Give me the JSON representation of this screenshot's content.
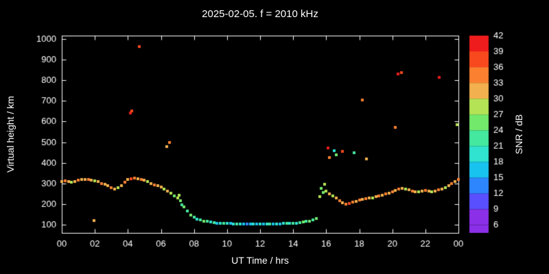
{
  "title": "2025-02-05. f = 2010 kHz",
  "chart_data": {
    "type": "scatter",
    "title": "2025-02-05. f = 2010 kHz",
    "xlabel": "UT Time / hrs",
    "ylabel": "Virtual height / km",
    "colorbar_label": "SNR / dB",
    "background": "#000000",
    "axis_color": "#ffffff",
    "xlim": [
      0,
      24
    ],
    "ylim": [
      100,
      1000
    ],
    "x_tick_values": [
      0,
      2,
      4,
      6,
      8,
      10,
      12,
      14,
      16,
      18,
      20,
      22,
      24
    ],
    "x_tick_labels": [
      "00",
      "02",
      "04",
      "06",
      "08",
      "10",
      "12",
      "14",
      "16",
      "18",
      "20",
      "22",
      "00"
    ],
    "y_tick_values": [
      100,
      200,
      300,
      400,
      500,
      600,
      700,
      800,
      900,
      1000
    ],
    "snr_range": [
      6,
      42
    ],
    "snr_ticks": [
      6,
      9,
      12,
      15,
      18,
      21,
      24,
      27,
      30,
      33,
      36,
      39,
      42
    ],
    "colormap": [
      "#8b2fe8",
      "#5a4fff",
      "#2e86ff",
      "#19c3f0",
      "#2fe3d0",
      "#44e89e",
      "#73e96c",
      "#b4e455",
      "#f2b14e",
      "#fb8130",
      "#f8491e",
      "#ee1c1c"
    ],
    "point_size": 4,
    "legend_position": "right-colorbar",
    "grid": false,
    "points": [
      [
        0.0,
        310,
        31
      ],
      [
        0.2,
        312,
        34
      ],
      [
        0.4,
        308,
        31
      ],
      [
        0.6,
        305,
        28
      ],
      [
        0.8,
        308,
        31
      ],
      [
        1.0,
        315,
        34
      ],
      [
        1.2,
        318,
        31
      ],
      [
        1.4,
        320,
        31
      ],
      [
        1.6,
        318,
        34
      ],
      [
        1.8,
        315,
        31
      ],
      [
        2.0,
        312,
        28
      ],
      [
        2.2,
        308,
        31
      ],
      [
        2.4,
        300,
        34
      ],
      [
        2.6,
        295,
        31
      ],
      [
        2.8,
        288,
        31
      ],
      [
        3.0,
        280,
        34
      ],
      [
        3.2,
        272,
        31
      ],
      [
        3.4,
        278,
        28
      ],
      [
        3.6,
        290,
        31
      ],
      [
        3.8,
        305,
        34
      ],
      [
        4.0,
        318,
        31
      ],
      [
        4.2,
        322,
        37
      ],
      [
        4.4,
        325,
        34
      ],
      [
        4.6,
        322,
        31
      ],
      [
        4.8,
        318,
        34
      ],
      [
        5.0,
        315,
        31
      ],
      [
        5.2,
        308,
        28
      ],
      [
        5.4,
        300,
        31
      ],
      [
        5.6,
        292,
        34
      ],
      [
        5.8,
        288,
        31
      ],
      [
        6.0,
        282,
        31
      ],
      [
        6.2,
        272,
        28
      ],
      [
        6.4,
        262,
        31
      ],
      [
        6.6,
        252,
        28
      ],
      [
        6.8,
        240,
        25
      ],
      [
        7.0,
        228,
        28
      ],
      [
        7.2,
        215,
        25
      ],
      [
        7.4,
        185,
        25
      ],
      [
        7.6,
        165,
        22
      ],
      [
        7.8,
        148,
        25
      ],
      [
        8.0,
        135,
        22
      ],
      [
        8.2,
        128,
        19
      ],
      [
        8.4,
        122,
        22
      ],
      [
        8.6,
        118,
        25
      ],
      [
        8.8,
        115,
        22
      ],
      [
        9.0,
        112,
        19
      ],
      [
        9.2,
        110,
        22
      ],
      [
        9.4,
        108,
        16
      ],
      [
        9.6,
        107,
        19
      ],
      [
        9.8,
        106,
        22
      ],
      [
        10.0,
        105,
        19
      ],
      [
        10.2,
        105,
        16
      ],
      [
        10.4,
        104,
        19
      ],
      [
        10.6,
        104,
        22
      ],
      [
        10.8,
        103,
        19
      ],
      [
        11.0,
        103,
        16
      ],
      [
        11.2,
        103,
        13
      ],
      [
        11.4,
        102,
        16
      ],
      [
        11.6,
        102,
        19
      ],
      [
        11.8,
        102,
        16
      ],
      [
        12.0,
        102,
        19
      ],
      [
        12.2,
        102,
        16
      ],
      [
        12.4,
        103,
        19
      ],
      [
        12.6,
        103,
        22
      ],
      [
        12.8,
        103,
        16
      ],
      [
        13.0,
        104,
        19
      ],
      [
        13.2,
        104,
        16
      ],
      [
        13.4,
        105,
        19
      ],
      [
        13.6,
        105,
        22
      ],
      [
        13.8,
        106,
        19
      ],
      [
        14.0,
        107,
        22
      ],
      [
        14.2,
        108,
        19
      ],
      [
        14.4,
        110,
        22
      ],
      [
        14.6,
        112,
        25
      ],
      [
        14.8,
        115,
        22
      ],
      [
        15.0,
        118,
        25
      ],
      [
        15.2,
        122,
        22
      ],
      [
        15.4,
        130,
        25
      ],
      [
        15.6,
        235,
        28
      ],
      [
        15.8,
        255,
        25
      ],
      [
        16.0,
        262,
        28
      ],
      [
        16.2,
        250,
        31
      ],
      [
        16.4,
        238,
        28
      ],
      [
        16.6,
        228,
        31
      ],
      [
        16.8,
        215,
        34
      ],
      [
        17.0,
        205,
        31
      ],
      [
        17.2,
        200,
        34
      ],
      [
        17.4,
        202,
        37
      ],
      [
        17.6,
        208,
        34
      ],
      [
        17.8,
        212,
        31
      ],
      [
        18.0,
        218,
        34
      ],
      [
        18.2,
        222,
        31
      ],
      [
        18.4,
        225,
        34
      ],
      [
        18.6,
        228,
        31
      ],
      [
        18.8,
        230,
        28
      ],
      [
        19.0,
        235,
        31
      ],
      [
        19.2,
        238,
        34
      ],
      [
        19.4,
        242,
        31
      ],
      [
        19.6,
        248,
        34
      ],
      [
        19.8,
        252,
        31
      ],
      [
        20.0,
        258,
        34
      ],
      [
        20.2,
        265,
        31
      ],
      [
        20.4,
        272,
        34
      ],
      [
        20.6,
        275,
        31
      ],
      [
        20.8,
        272,
        28
      ],
      [
        21.0,
        268,
        31
      ],
      [
        21.2,
        262,
        34
      ],
      [
        21.4,
        258,
        31
      ],
      [
        21.6,
        260,
        28
      ],
      [
        21.8,
        262,
        31
      ],
      [
        22.0,
        265,
        34
      ],
      [
        22.2,
        262,
        31
      ],
      [
        22.4,
        258,
        28
      ],
      [
        22.6,
        262,
        31
      ],
      [
        22.8,
        268,
        34
      ],
      [
        23.0,
        272,
        31
      ],
      [
        23.2,
        280,
        28
      ],
      [
        23.4,
        288,
        31
      ],
      [
        23.6,
        298,
        34
      ],
      [
        23.8,
        308,
        31
      ],
      [
        24.0,
        318,
        34
      ],
      [
        1.95,
        120,
        31
      ],
      [
        4.15,
        640,
        40
      ],
      [
        4.22,
        652,
        37
      ],
      [
        4.7,
        963,
        37
      ],
      [
        6.35,
        478,
        31
      ],
      [
        6.5,
        498,
        34
      ],
      [
        7.1,
        243,
        28
      ],
      [
        7.25,
        196,
        22
      ],
      [
        15.7,
        275,
        25
      ],
      [
        15.9,
        295,
        28
      ],
      [
        16.1,
        473,
        40
      ],
      [
        16.2,
        424,
        34
      ],
      [
        16.5,
        458,
        19
      ],
      [
        16.62,
        440,
        25
      ],
      [
        17.0,
        455,
        37
      ],
      [
        17.7,
        450,
        22
      ],
      [
        18.2,
        705,
        34
      ],
      [
        18.45,
        418,
        31
      ],
      [
        20.2,
        573,
        34
      ],
      [
        20.35,
        830,
        40
      ],
      [
        20.55,
        838,
        37
      ],
      [
        22.85,
        815,
        40
      ],
      [
        23.9,
        585,
        28
      ]
    ]
  }
}
